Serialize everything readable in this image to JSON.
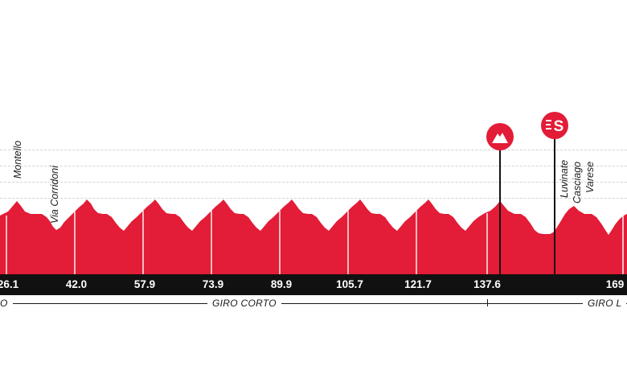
{
  "profile": {
    "fill_color": "#e31c37",
    "km_markers": [
      "26.1",
      "42.0",
      "57.9",
      "73.9",
      "89.9",
      "105.7",
      "121.7",
      "137.6",
      "169"
    ],
    "places": {
      "montello": "Montello",
      "via_corridoni": "Via Corridoni",
      "luvinate": "Luvinate",
      "casciago": "Casciago",
      "varese": "Varese"
    },
    "circuits": {
      "left_fragment": "O",
      "giro_corto": "GIRO CORTO",
      "giro_lungo_fragment": "GIRO L"
    },
    "markers": {
      "kom": {
        "icon": "mountain-icon"
      },
      "sprint": {
        "icon": "sprint-icon",
        "letter": "S"
      },
      "partial": {
        "icon": "mountain-icon"
      }
    }
  }
}
